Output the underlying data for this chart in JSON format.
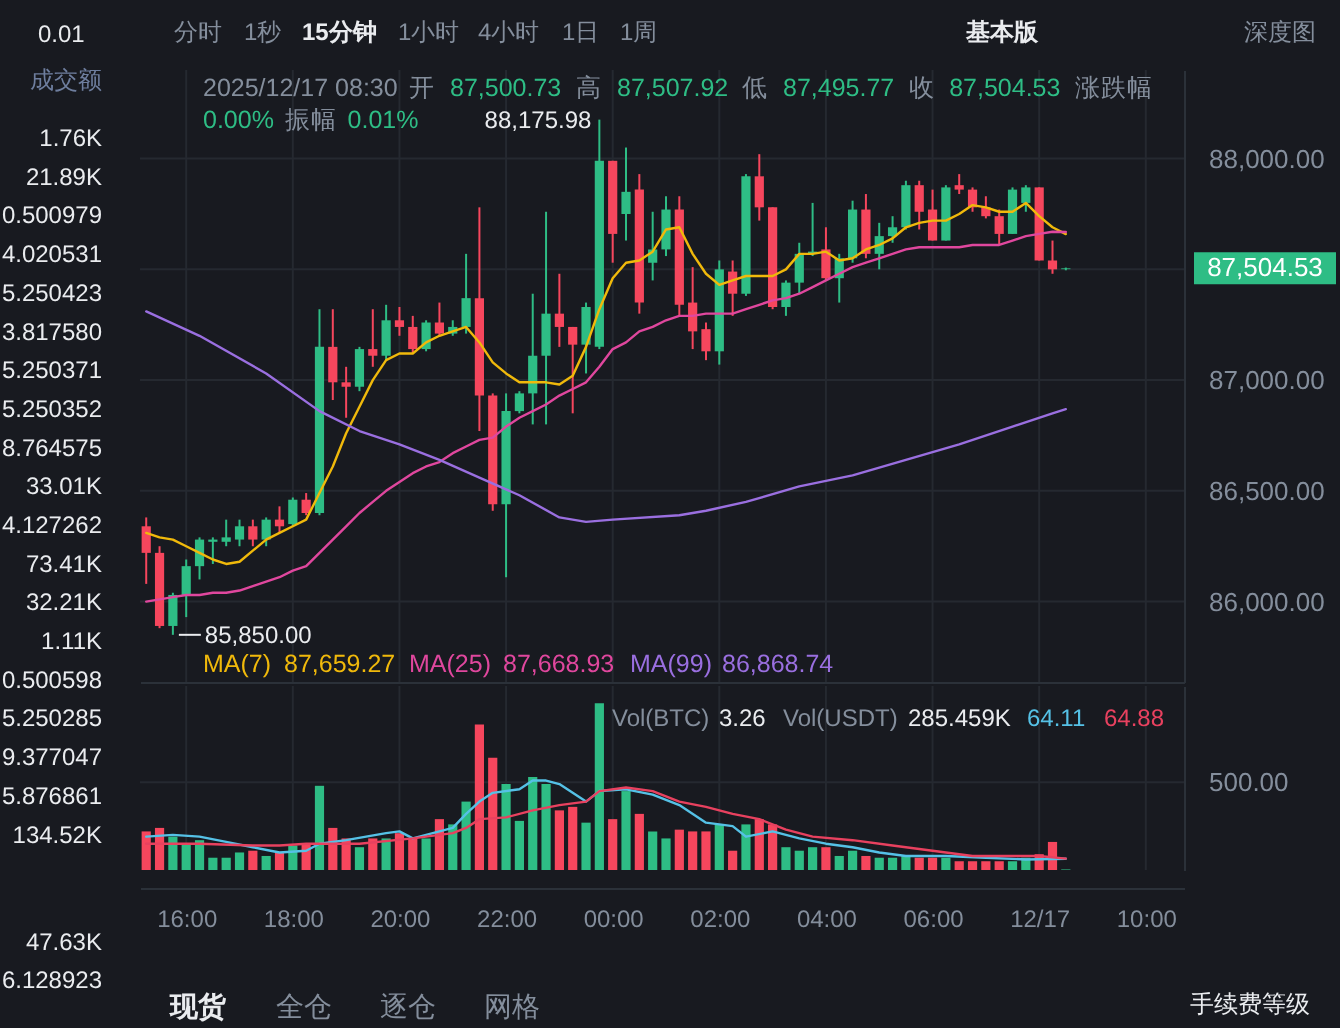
{
  "chart_data": [
    {
      "type": "candlestick",
      "x": [
        "2025-12-16T15:15",
        "2025-12-16T15:30",
        "2025-12-16T15:45",
        "2025-12-16T16:00",
        "2025-12-16T16:15",
        "2025-12-16T16:30",
        "2025-12-16T16:45",
        "2025-12-16T17:00",
        "2025-12-16T17:15",
        "2025-12-16T17:30",
        "2025-12-16T17:45",
        "2025-12-16T18:00",
        "2025-12-16T18:15",
        "2025-12-16T18:30",
        "2025-12-16T18:45",
        "2025-12-16T19:00",
        "2025-12-16T19:15",
        "2025-12-16T19:30",
        "2025-12-16T19:45",
        "2025-12-16T20:00",
        "2025-12-16T20:15",
        "2025-12-16T20:30",
        "2025-12-16T20:45",
        "2025-12-16T21:00",
        "2025-12-16T21:15",
        "2025-12-16T21:30",
        "2025-12-16T21:45",
        "2025-12-16T22:00",
        "2025-12-16T22:15",
        "2025-12-16T22:30",
        "2025-12-16T22:45",
        "2025-12-16T23:00",
        "2025-12-16T23:15",
        "2025-12-16T23:30",
        "2025-12-16T23:45",
        "2025-12-17T00:00",
        "2025-12-17T00:15",
        "2025-12-17T00:30",
        "2025-12-17T00:45",
        "2025-12-17T01:00",
        "2025-12-17T01:15",
        "2025-12-17T01:30",
        "2025-12-17T01:45",
        "2025-12-17T02:00",
        "2025-12-17T02:15",
        "2025-12-17T02:30",
        "2025-12-17T02:45",
        "2025-12-17T03:00",
        "2025-12-17T03:15",
        "2025-12-17T03:30",
        "2025-12-17T03:45",
        "2025-12-17T04:00",
        "2025-12-17T04:15",
        "2025-12-17T04:30",
        "2025-12-17T04:45",
        "2025-12-17T05:00",
        "2025-12-17T05:15",
        "2025-12-17T05:30",
        "2025-12-17T05:45",
        "2025-12-17T06:00",
        "2025-12-17T06:15",
        "2025-12-17T06:30",
        "2025-12-17T06:45",
        "2025-12-17T07:00",
        "2025-12-17T07:15",
        "2025-12-17T07:30",
        "2025-12-17T07:45",
        "2025-12-17T08:00",
        "2025-12-17T08:15",
        "2025-12-17T08:30"
      ],
      "ohlc": [
        [
          86340,
          86380,
          86080,
          86220
        ],
        [
          86220,
          86250,
          85880,
          85890
        ],
        [
          85890,
          86040,
          85850,
          86030
        ],
        [
          86030,
          86190,
          85930,
          86160
        ],
        [
          86160,
          86290,
          86100,
          86280
        ],
        [
          86270,
          86290,
          86170,
          86280
        ],
        [
          86270,
          86370,
          86250,
          86290
        ],
        [
          86280,
          86370,
          86250,
          86340
        ],
        [
          86340,
          86370,
          86250,
          86280
        ],
        [
          86280,
          86380,
          86250,
          86370
        ],
        [
          86370,
          86430,
          86310,
          86340
        ],
        [
          86350,
          86470,
          86340,
          86460
        ],
        [
          86460,
          86490,
          86390,
          86400
        ],
        [
          86400,
          87320,
          86390,
          87150
        ],
        [
          87150,
          87320,
          86910,
          86990
        ],
        [
          86990,
          87060,
          86830,
          86970
        ],
        [
          86970,
          87150,
          86950,
          87140
        ],
        [
          87140,
          87320,
          87060,
          87110
        ],
        [
          87110,
          87340,
          87090,
          87270
        ],
        [
          87270,
          87330,
          87200,
          87240
        ],
        [
          87240,
          87290,
          87120,
          87140
        ],
        [
          87140,
          87270,
          87130,
          87260
        ],
        [
          87260,
          87350,
          87200,
          87210
        ],
        [
          87210,
          87270,
          87200,
          87240
        ],
        [
          87240,
          87570,
          87210,
          87370
        ],
        [
          87370,
          87780,
          86770,
          86930
        ],
        [
          86930,
          86940,
          86410,
          86440
        ],
        [
          86440,
          86940,
          86110,
          86860
        ],
        [
          86860,
          86950,
          86850,
          86940
        ],
        [
          86940,
          87390,
          86800,
          87110
        ],
        [
          87110,
          87760,
          86800,
          87300
        ],
        [
          87300,
          87480,
          87150,
          87240
        ],
        [
          87240,
          87240,
          86850,
          87160
        ],
        [
          87160,
          87350,
          87030,
          87330
        ],
        [
          87150,
          88175.98,
          87140,
          87990
        ],
        [
          87990,
          87990,
          87530,
          87660
        ],
        [
          87750,
          88050,
          87630,
          87850
        ],
        [
          87860,
          87930,
          87300,
          87350
        ],
        [
          87530,
          87760,
          87450,
          87590
        ],
        [
          87590,
          87830,
          87560,
          87770
        ],
        [
          87770,
          87830,
          87290,
          87340
        ],
        [
          87350,
          87510,
          87140,
          87220
        ],
        [
          87230,
          87260,
          87090,
          87130
        ],
        [
          87130,
          87540,
          87070,
          87500
        ],
        [
          87490,
          87540,
          87290,
          87390
        ],
        [
          87390,
          87930,
          87380,
          87920
        ],
        [
          87920,
          88020,
          87720,
          87780
        ],
        [
          87780,
          87780,
          87320,
          87330
        ],
        [
          87330,
          87450,
          87290,
          87440
        ],
        [
          87440,
          87620,
          87390,
          87570
        ],
        [
          87570,
          87800,
          87560,
          87580
        ],
        [
          87590,
          87690,
          87450,
          87460
        ],
        [
          87460,
          87570,
          87350,
          87550
        ],
        [
          87550,
          87810,
          87530,
          87770
        ],
        [
          87770,
          87840,
          87550,
          87570
        ],
        [
          87570,
          87710,
          87500,
          87650
        ],
        [
          87650,
          87740,
          87620,
          87690
        ],
        [
          87690,
          87900,
          87680,
          87880
        ],
        [
          87880,
          87900,
          87680,
          87760
        ],
        [
          87770,
          87860,
          87630,
          87630
        ],
        [
          87630,
          87880,
          87630,
          87870
        ],
        [
          87880,
          87930,
          87840,
          87860
        ],
        [
          87860,
          87870,
          87760,
          87780
        ],
        [
          87780,
          87830,
          87730,
          87740
        ],
        [
          87740,
          87770,
          87610,
          87660
        ],
        [
          87660,
          87870,
          87660,
          87860
        ],
        [
          87800,
          87880,
          87760,
          87870
        ],
        [
          87870,
          87870,
          87540,
          87540
        ],
        [
          87540,
          87630,
          87480,
          87500
        ],
        [
          87500.73,
          87507.92,
          87495.77,
          87504.53
        ]
      ],
      "colors": [
        "#f6465d",
        "#f6465d",
        "#2ebd85",
        "#2ebd85",
        "#2ebd85",
        "#2ebd85",
        "#2ebd85",
        "#2ebd85",
        "#f6465d",
        "#2ebd85",
        "#f6465d",
        "#2ebd85",
        "#f6465d",
        "#2ebd85",
        "#f6465d",
        "#f6465d",
        "#2ebd85",
        "#f6465d",
        "#2ebd85",
        "#f6465d",
        "#f6465d",
        "#2ebd85",
        "#f6465d",
        "#2ebd85",
        "#2ebd85",
        "#f6465d",
        "#f6465d",
        "#2ebd85",
        "#2ebd85",
        "#2ebd85",
        "#2ebd85",
        "#f6465d",
        "#f6465d",
        "#2ebd85",
        "#2ebd85",
        "#f6465d",
        "#2ebd85",
        "#f6465d",
        "#2ebd85",
        "#2ebd85",
        "#f6465d",
        "#f6465d",
        "#f6465d",
        "#2ebd85",
        "#f6465d",
        "#2ebd85",
        "#f6465d",
        "#f6465d",
        "#2ebd85",
        "#2ebd85",
        "#2ebd85",
        "#f6465d",
        "#2ebd85",
        "#2ebd85",
        "#f6465d",
        "#2ebd85",
        "#2ebd85",
        "#2ebd85",
        "#f6465d",
        "#f6465d",
        "#2ebd85",
        "#f6465d",
        "#f6465d",
        "#f6465d",
        "#f6465d",
        "#2ebd85",
        "#2ebd85",
        "#f6465d",
        "#f6465d",
        "#2ebd85"
      ],
      "series": [
        {
          "name": "MA(7)",
          "type": "line",
          "color": "#f0b90b",
          "values": [
            86310,
            86290,
            86280,
            86250,
            86220,
            86190,
            86170,
            86180,
            86230,
            86280,
            86310,
            86340,
            86370,
            86490,
            86610,
            86760,
            86880,
            87000,
            87090,
            87120,
            87120,
            87170,
            87200,
            87220,
            87240,
            87170,
            87080,
            87030,
            86990,
            86990,
            86990,
            86980,
            87020,
            87150,
            87320,
            87460,
            87530,
            87540,
            87580,
            87680,
            87690,
            87570,
            87480,
            87430,
            87450,
            87470,
            87470,
            87470,
            87500,
            87570,
            87570,
            87580,
            87540,
            87550,
            87590,
            87610,
            87640,
            87690,
            87710,
            87720,
            87720,
            87750,
            87790,
            87780,
            87760,
            87760,
            87800,
            87740,
            87690,
            87659.27
          ]
        },
        {
          "name": "MA(25)",
          "type": "line",
          "color": "#e0479e",
          "values": [
            86000,
            86010,
            86020,
            86030,
            86030,
            86040,
            86040,
            86050,
            86070,
            86090,
            86110,
            86140,
            86160,
            86220,
            86280,
            86340,
            86400,
            86450,
            86500,
            86540,
            86580,
            86610,
            86630,
            86670,
            86700,
            86730,
            86740,
            86790,
            86830,
            86860,
            86890,
            86930,
            86960,
            86990,
            87060,
            87140,
            87170,
            87220,
            87240,
            87270,
            87290,
            87290,
            87300,
            87300,
            87300,
            87320,
            87340,
            87360,
            87370,
            87390,
            87420,
            87450,
            87480,
            87510,
            87530,
            87550,
            87570,
            87590,
            87600,
            87600,
            87600,
            87600,
            87610,
            87610,
            87610,
            87630,
            87650,
            87660,
            87670,
            87668.93
          ]
        },
        {
          "name": "MA(99)",
          "type": "line",
          "color": "#9a6fe0",
          "x": [
            "2025-12-16T15:15",
            "2025-12-16T16:15",
            "2025-12-16T17:30",
            "2025-12-16T18:30",
            "2025-12-16T19:15",
            "2025-12-16T20:00",
            "2025-12-16T20:45",
            "2025-12-16T21:30",
            "2025-12-16T22:15",
            "2025-12-16T23:00",
            "2025-12-16T23:30",
            "2025-12-17T00:00",
            "2025-12-17T01:15",
            "2025-12-17T01:45",
            "2025-12-17T02:30",
            "2025-12-17T03:30",
            "2025-12-17T04:30",
            "2025-12-17T05:30",
            "2025-12-17T06:30",
            "2025-12-17T07:30",
            "2025-12-17T08:15",
            "2025-12-17T08:30"
          ],
          "values": [
            87310,
            87200,
            87030,
            86860,
            86770,
            86710,
            86640,
            86560,
            86480,
            86380,
            86360,
            86370,
            86390,
            86410,
            86450,
            86520,
            86570,
            86640,
            86710,
            86790,
            86850,
            86868.74
          ]
        }
      ],
      "xlim": [
        "2025-12-16T15:08",
        "2025-12-17T10:43"
      ],
      "ylim": [
        85637,
        88400
      ],
      "xticks": [
        {
          "value": "2025-12-16T16:00",
          "label": null
        },
        {
          "value": "2025-12-16T18:00",
          "label": null
        },
        {
          "value": "2025-12-16T20:00",
          "label": null
        },
        {
          "value": "2025-12-16T22:00",
          "label": null
        },
        {
          "value": "2025-12-17T00:00",
          "label": null
        },
        {
          "value": "2025-12-17T02:00",
          "label": null
        },
        {
          "value": "2025-12-17T04:00",
          "label": null
        },
        {
          "value": "2025-12-17T06:00",
          "label": null
        },
        {
          "value": "2025-12-17T08:00",
          "label": null
        },
        {
          "value": "2025-12-17T10:00",
          "label": null
        }
      ],
      "yticks": [
        {
          "value": 88000,
          "label": "88,000.00"
        },
        {
          "value": 87500,
          "label": null
        },
        {
          "value": 87000,
          "label": "87,000.00"
        },
        {
          "value": 86500,
          "label": "86,500.00"
        },
        {
          "value": 86000,
          "label": "86,000.00"
        }
      ],
      "tick_labels": "y",
      "grid": true,
      "legend": "bottom left",
      "annotations": [
        "2025/12/17 08:30",
        "开",
        "87,500.73",
        "高",
        "87,507.92",
        "低",
        "87,495.77",
        "收",
        "87,504.53",
        "涨跌幅",
        "0.00%",
        "振幅",
        "0.01%",
        "87,659.27",
        "87,668.93",
        "86,868.74",
        "87,504.53",
        {
          "text": "88,175.98",
          "x": "2025-12-16T23:45",
          "y": 88175.98
        },
        {
          "text": "85,850.00",
          "x": "2025-12-16T15:45",
          "y": 85850
        }
      ]
    },
    {
      "type": "bar",
      "x": [
        "2025-12-16T15:15",
        "2025-12-16T15:30",
        "2025-12-16T15:45",
        "2025-12-16T16:00",
        "2025-12-16T16:15",
        "2025-12-16T16:30",
        "2025-12-16T16:45",
        "2025-12-16T17:00",
        "2025-12-16T17:15",
        "2025-12-16T17:30",
        "2025-12-16T17:45",
        "2025-12-16T18:00",
        "2025-12-16T18:15",
        "2025-12-16T18:30",
        "2025-12-16T18:45",
        "2025-12-16T19:00",
        "2025-12-16T19:15",
        "2025-12-16T19:30",
        "2025-12-16T19:45",
        "2025-12-16T20:00",
        "2025-12-16T20:15",
        "2025-12-16T20:30",
        "2025-12-16T20:45",
        "2025-12-16T21:00",
        "2025-12-16T21:15",
        "2025-12-16T21:30",
        "2025-12-16T21:45",
        "2025-12-16T22:00",
        "2025-12-16T22:15",
        "2025-12-16T22:30",
        "2025-12-16T22:45",
        "2025-12-16T23:00",
        "2025-12-16T23:15",
        "2025-12-16T23:30",
        "2025-12-16T23:45",
        "2025-12-17T00:00",
        "2025-12-17T00:15",
        "2025-12-17T00:30",
        "2025-12-17T00:45",
        "2025-12-17T01:00",
        "2025-12-17T01:15",
        "2025-12-17T01:30",
        "2025-12-17T01:45",
        "2025-12-17T02:00",
        "2025-12-17T02:15",
        "2025-12-17T02:30",
        "2025-12-17T02:45",
        "2025-12-17T03:00",
        "2025-12-17T03:15",
        "2025-12-17T03:30",
        "2025-12-17T03:45",
        "2025-12-17T04:00",
        "2025-12-17T04:15",
        "2025-12-17T04:30",
        "2025-12-17T04:45",
        "2025-12-17T05:00",
        "2025-12-17T05:15",
        "2025-12-17T05:30",
        "2025-12-17T05:45",
        "2025-12-17T06:00",
        "2025-12-17T06:15",
        "2025-12-17T06:30",
        "2025-12-17T06:45",
        "2025-12-17T07:00",
        "2025-12-17T07:15",
        "2025-12-17T07:30",
        "2025-12-17T07:45",
        "2025-12-17T08:00",
        "2025-12-17T08:15",
        "2025-12-17T08:30"
      ],
      "series": [
        {
          "name": "Vol(BTC)",
          "type": "bar",
          "values": [
            220,
            240,
            190,
            150,
            170,
            70,
            70,
            100,
            110,
            80,
            100,
            140,
            150,
            480,
            240,
            180,
            130,
            180,
            180,
            210,
            180,
            180,
            290,
            260,
            390,
            830,
            640,
            490,
            280,
            530,
            490,
            340,
            360,
            270,
            950,
            290,
            450,
            320,
            220,
            180,
            230,
            220,
            220,
            260,
            110,
            260,
            290,
            260,
            130,
            110,
            130,
            130,
            80,
            110,
            80,
            70,
            70,
            80,
            70,
            70,
            70,
            50,
            50,
            50,
            50,
            50,
            70,
            90,
            160,
            3.26
          ],
          "colors": [
            "#f6465d",
            "#f6465d",
            "#2ebd85",
            "#2ebd85",
            "#2ebd85",
            "#2ebd85",
            "#2ebd85",
            "#2ebd85",
            "#f6465d",
            "#2ebd85",
            "#f6465d",
            "#2ebd85",
            "#f6465d",
            "#2ebd85",
            "#f6465d",
            "#f6465d",
            "#2ebd85",
            "#f6465d",
            "#2ebd85",
            "#f6465d",
            "#f6465d",
            "#2ebd85",
            "#f6465d",
            "#2ebd85",
            "#2ebd85",
            "#f6465d",
            "#f6465d",
            "#2ebd85",
            "#2ebd85",
            "#2ebd85",
            "#2ebd85",
            "#f6465d",
            "#f6465d",
            "#2ebd85",
            "#2ebd85",
            "#f6465d",
            "#2ebd85",
            "#f6465d",
            "#2ebd85",
            "#2ebd85",
            "#f6465d",
            "#f6465d",
            "#f6465d",
            "#2ebd85",
            "#f6465d",
            "#2ebd85",
            "#f6465d",
            "#f6465d",
            "#2ebd85",
            "#2ebd85",
            "#2ebd85",
            "#f6465d",
            "#2ebd85",
            "#2ebd85",
            "#f6465d",
            "#2ebd85",
            "#2ebd85",
            "#2ebd85",
            "#f6465d",
            "#f6465d",
            "#2ebd85",
            "#f6465d",
            "#f6465d",
            "#f6465d",
            "#f6465d",
            "#2ebd85",
            "#2ebd85",
            "#f6465d",
            "#f6465d",
            "#2ebd85"
          ]
        },
        {
          "type": "line",
          "color": "#55c1e6",
          "x": [
            "2025-12-16T15:15",
            "2025-12-16T15:45",
            "2025-12-16T16:15",
            "2025-12-16T16:45",
            "2025-12-16T17:15",
            "2025-12-16T17:45",
            "2025-12-16T18:15",
            "2025-12-16T18:30",
            "2025-12-16T19:00",
            "2025-12-16T19:45",
            "2025-12-16T20:00",
            "2025-12-16T20:15",
            "2025-12-16T20:45",
            "2025-12-16T21:00",
            "2025-12-16T21:15",
            "2025-12-16T21:30",
            "2025-12-16T21:45",
            "2025-12-16T22:15",
            "2025-12-16T22:30",
            "2025-12-16T22:45",
            "2025-12-16T23:00",
            "2025-12-16T23:30",
            "2025-12-16T23:45",
            "2025-12-17T00:15",
            "2025-12-17T00:45",
            "2025-12-17T01:15",
            "2025-12-17T01:45",
            "2025-12-17T02:15",
            "2025-12-17T02:30",
            "2025-12-17T03:00",
            "2025-12-17T03:30",
            "2025-12-17T04:00",
            "2025-12-17T04:30",
            "2025-12-17T05:00",
            "2025-12-17T05:30",
            "2025-12-17T06:15",
            "2025-12-17T07:00",
            "2025-12-17T07:45",
            "2025-12-17T08:30"
          ],
          "values": [
            190,
            200,
            190,
            160,
            130,
            100,
            110,
            150,
            170,
            210,
            220,
            180,
            220,
            240,
            320,
            390,
            440,
            460,
            510,
            510,
            490,
            390,
            450,
            460,
            430,
            370,
            270,
            250,
            190,
            220,
            180,
            150,
            130,
            100,
            80,
            80,
            70,
            60,
            64.11
          ]
        },
        {
          "type": "line",
          "color": "#e8415f",
          "x": [
            "2025-12-16T15:15",
            "2025-12-16T16:15",
            "2025-12-16T17:15",
            "2025-12-16T17:45",
            "2025-12-16T18:15",
            "2025-12-16T19:15",
            "2025-12-16T20:15",
            "2025-12-16T21:00",
            "2025-12-16T21:15",
            "2025-12-16T21:30",
            "2025-12-16T22:00",
            "2025-12-16T22:30",
            "2025-12-16T23:00",
            "2025-12-16T23:30",
            "2025-12-16T23:45",
            "2025-12-17T00:15",
            "2025-12-17T00:45",
            "2025-12-17T01:15",
            "2025-12-17T01:45",
            "2025-12-17T02:15",
            "2025-12-17T02:45",
            "2025-12-17T03:15",
            "2025-12-17T03:45",
            "2025-12-17T04:30",
            "2025-12-17T05:15",
            "2025-12-17T06:00",
            "2025-12-17T06:45",
            "2025-12-17T07:30",
            "2025-12-17T08:00",
            "2025-12-17T08:30"
          ],
          "values": [
            150,
            150,
            140,
            140,
            150,
            150,
            180,
            210,
            240,
            290,
            300,
            340,
            370,
            390,
            450,
            470,
            450,
            390,
            360,
            320,
            290,
            230,
            190,
            170,
            140,
            110,
            80,
            80,
            80,
            64.88
          ]
        }
      ],
      "xlim": [
        "2025-12-16T15:08",
        "2025-12-17T10:43"
      ],
      "ylim": [
        0,
        1049
      ],
      "xticks": [
        {
          "value": "2025-12-16T16:00",
          "label": "16:00"
        },
        {
          "value": "2025-12-16T18:00",
          "label": "18:00"
        },
        {
          "value": "2025-12-16T20:00",
          "label": "20:00"
        },
        {
          "value": "2025-12-16T22:00",
          "label": "22:00"
        },
        {
          "value": "2025-12-17T00:00",
          "label": "00:00"
        },
        {
          "value": "2025-12-17T02:00",
          "label": "02:00"
        },
        {
          "value": "2025-12-17T04:00",
          "label": "04:00"
        },
        {
          "value": "2025-12-17T06:00",
          "label": "06:00"
        },
        {
          "value": "2025-12-17T08:00",
          "label": "12/17"
        },
        {
          "value": "2025-12-17T10:00",
          "label": "10:00"
        }
      ],
      "yticks": [
        {
          "value": 500,
          "label": "500.00"
        }
      ],
      "grid": true,
      "legend": "top right",
      "annotations": [
        "3.26",
        "Vol(USDT)",
        "285.459K",
        "64.11",
        "64.88"
      ]
    },
    {
      "type": "other",
      "annotations": [
        "0.01",
        "成交额",
        "1.76K",
        "21.89K",
        "0.500979",
        "4.020531",
        "5.250423",
        "3.817580",
        "5.250371",
        "5.250352",
        "8.764575",
        "33.01K",
        "4.127262",
        "73.41K",
        "32.21K",
        "1.11K",
        "0.500598",
        "5.250285",
        "9.377047",
        "5.876861",
        "134.52K",
        "47.63K",
        "6.128923",
        "分时",
        "1秒",
        "15分钟",
        "1小时",
        "4小时",
        "1日",
        "1周",
        "基本版",
        "深度图",
        "现货",
        "全仓",
        "逐仓",
        "网格",
        "手续费等级"
      ]
    }
  ]
}
